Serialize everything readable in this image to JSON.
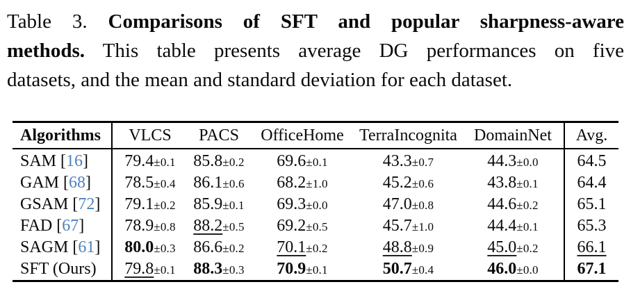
{
  "colors": {
    "citation_blue": "#4d80bd",
    "text": "#0a0a0a",
    "rule": "#000000"
  },
  "caption": {
    "l1_normal": "Table 3.",
    "l1_bold": "Comparisons of SFT and popular sharpness-aware",
    "l2_bold": "methods.",
    "l2_normal": "This table presents average DG performances on five",
    "l3_normal": "datasets, and the mean and standard deviation for each dataset."
  },
  "table": {
    "header": {
      "algorithms": "Algorithms",
      "columns": [
        "VLCS",
        "PACS",
        "OfficeHome",
        "TerraIncognita",
        "DomainNet"
      ],
      "avg": "Avg."
    },
    "bracket_open": "[",
    "bracket_close": "]",
    "plus_minus": "±",
    "rows": [
      {
        "algorithm": "SAM",
        "cite": "16",
        "cells": [
          {
            "v": "79.4",
            "pm": "0.1",
            "style": "plain"
          },
          {
            "v": "85.8",
            "pm": "0.2",
            "style": "plain"
          },
          {
            "v": "69.6",
            "pm": "0.1",
            "style": "plain"
          },
          {
            "v": "43.3",
            "pm": "0.7",
            "style": "plain"
          },
          {
            "v": "44.3",
            "pm": "0.0",
            "style": "plain"
          }
        ],
        "avg": {
          "v": "64.5",
          "style": "plain"
        }
      },
      {
        "algorithm": "GAM",
        "cite": "68",
        "cells": [
          {
            "v": "78.5",
            "pm": "0.4",
            "style": "plain"
          },
          {
            "v": "86.1",
            "pm": "0.6",
            "style": "plain"
          },
          {
            "v": "68.2",
            "pm": "1.0",
            "style": "plain"
          },
          {
            "v": "45.2",
            "pm": "0.6",
            "style": "plain"
          },
          {
            "v": "43.8",
            "pm": "0.1",
            "style": "plain"
          }
        ],
        "avg": {
          "v": "64.4",
          "style": "plain"
        }
      },
      {
        "algorithm": "GSAM",
        "cite": "72",
        "cells": [
          {
            "v": "79.1",
            "pm": "0.2",
            "style": "plain"
          },
          {
            "v": "85.9",
            "pm": "0.1",
            "style": "plain"
          },
          {
            "v": "69.3",
            "pm": "0.0",
            "style": "plain"
          },
          {
            "v": "47.0",
            "pm": "0.8",
            "style": "plain"
          },
          {
            "v": "44.6",
            "pm": "0.2",
            "style": "plain"
          }
        ],
        "avg": {
          "v": "65.1",
          "style": "plain"
        }
      },
      {
        "algorithm": "FAD",
        "cite": "67",
        "cells": [
          {
            "v": "78.9",
            "pm": "0.8",
            "style": "plain"
          },
          {
            "v": "88.2",
            "pm": "0.5",
            "style": "underline"
          },
          {
            "v": "69.2",
            "pm": "0.5",
            "style": "plain"
          },
          {
            "v": "45.7",
            "pm": "1.0",
            "style": "plain"
          },
          {
            "v": "44.4",
            "pm": "0.1",
            "style": "plain"
          }
        ],
        "avg": {
          "v": "65.3",
          "style": "plain"
        }
      },
      {
        "algorithm": "SAGM",
        "cite": "61",
        "cells": [
          {
            "v": "80.0",
            "pm": "0.3",
            "style": "bold"
          },
          {
            "v": "86.6",
            "pm": "0.2",
            "style": "plain"
          },
          {
            "v": "70.1",
            "pm": "0.2",
            "style": "underline"
          },
          {
            "v": "48.8",
            "pm": "0.9",
            "style": "underline"
          },
          {
            "v": "45.0",
            "pm": "0.2",
            "style": "underline"
          }
        ],
        "avg": {
          "v": "66.1",
          "style": "underline"
        }
      },
      {
        "algorithm": "SFT (Ours)",
        "cite": null,
        "cells": [
          {
            "v": "79.8",
            "pm": "0.1",
            "style": "underline"
          },
          {
            "v": "88.3",
            "pm": "0.3",
            "style": "bold"
          },
          {
            "v": "70.9",
            "pm": "0.1",
            "style": "bold"
          },
          {
            "v": "50.7",
            "pm": "0.4",
            "style": "bold"
          },
          {
            "v": "46.0",
            "pm": "0.0",
            "style": "bold"
          }
        ],
        "avg": {
          "v": "67.1",
          "style": "bold"
        }
      }
    ]
  }
}
